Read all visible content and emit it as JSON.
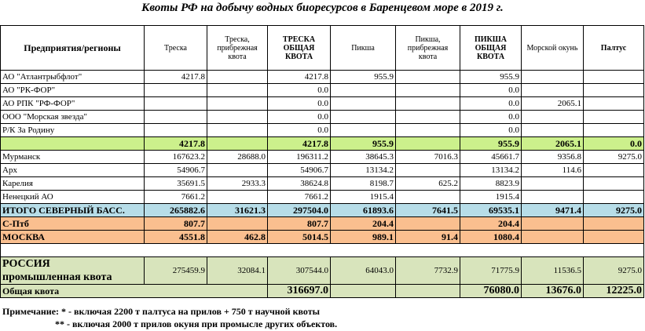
{
  "title": "Квоты РФ на добычу водных биоресурсов в Баренцевом море в 2019 г.",
  "table": {
    "header": [
      "Предприятия/регионы",
      "Треска",
      "Треска, прибрежная квота",
      "ТРЕСКА ОБЩАЯ КВОТА",
      "Пикша",
      "Пикша, прибрежная квота",
      "ПИКША ОБЩАЯ КВОТА",
      "Морской окунь",
      "Палтус"
    ],
    "rows": [
      {
        "label": "АО \"Атлантрыбфлот\"",
        "cells": [
          "4217.8",
          null,
          "4217.8",
          "955.9",
          null,
          "955.9",
          null,
          null
        ]
      },
      {
        "label": "АО \"РК-ФОР\"",
        "cells": [
          null,
          null,
          "0.0",
          null,
          null,
          "0.0",
          null,
          null
        ]
      },
      {
        "label": "АО РПК \"РФ-ФОР\"",
        "cells": [
          null,
          null,
          "0.0",
          null,
          null,
          "0.0",
          "2065.1",
          null
        ]
      },
      {
        "label": "ООО \"Морская звезда\"",
        "cells": [
          null,
          null,
          "0.0",
          null,
          null,
          "0.0",
          null,
          null
        ]
      },
      {
        "label": "Р/К За Родину",
        "cells": [
          null,
          null,
          "0.0",
          null,
          null,
          "0.0",
          null,
          null
        ]
      },
      {
        "label": null,
        "color": "#ccf08c",
        "cells": [
          "4217.8",
          null,
          "4217.8",
          "955.9",
          null,
          "955.9",
          "2065.1",
          "0.0"
        ]
      },
      {
        "label": "Мурманск",
        "cells": [
          "167623.2",
          "28688.0",
          "196311.2",
          "38645.3",
          "7016.3",
          "45661.7",
          "9356.8",
          "9275.0"
        ]
      },
      {
        "label": "Арх",
        "cells": [
          "54906.7",
          null,
          "54906.7",
          "13134.2",
          null,
          "13134.2",
          "114.6",
          null
        ]
      },
      {
        "label": "Карелия",
        "cells": [
          "35691.5",
          "2933.3",
          "38624.8",
          "8198.7",
          "625.2",
          "8823.9",
          null,
          null
        ]
      },
      {
        "label": "Ненецкий АО",
        "cells": [
          "7661.2",
          null,
          "7661.2",
          "1915.4",
          null,
          "1915.4",
          null,
          null
        ]
      },
      {
        "label": "ИТОГО СЕВЕРНЫЙ БАСС.",
        "color": "#b7dde8",
        "cells": [
          "265882.6",
          "31621.3",
          "297504.0",
          "61893.6",
          "7641.5",
          "69535.1",
          "9471.4",
          "9275.0"
        ]
      },
      {
        "label": "С-Птб",
        "color": "#fabf8f",
        "cells": [
          "807.7",
          null,
          "807.7",
          "204.4",
          null,
          "204.4",
          null,
          null
        ]
      },
      {
        "label": "МОСКВА",
        "color": "#fabf8f",
        "cells": [
          "4551.8",
          "462.8",
          "5014.5",
          "989.1",
          "91.4",
          "1080.4",
          null,
          null
        ]
      },
      {
        "label": [
          "РОССИЯ",
          "промышленная квота"
        ],
        "color": "#d8e4bc",
        "cells": [
          "275459.9",
          "32084.1",
          "307544.0",
          "64043.0",
          "7732.9",
          "71775.9",
          "11536.5",
          "9275.0"
        ]
      },
      {
        "label": "Общая квота",
        "color": "#d8e4bc",
        "cells": [
          null,
          null,
          "316697.0",
          null,
          null,
          "76080.0",
          "13676.0",
          "12225.0"
        ]
      }
    ]
  },
  "notes": [
    "Примечание: * - включая 2200 т палтуса на прилов + 750 т научной квоты",
    "** - включая 2000 т прилов окуня при промысле других объектов."
  ]
}
